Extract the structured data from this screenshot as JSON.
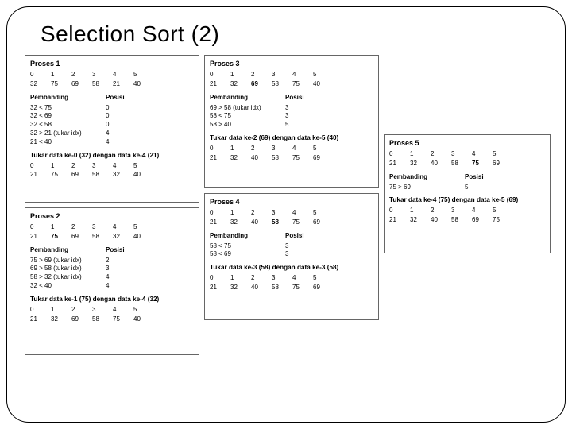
{
  "title": "Selection Sort (2)",
  "panels": {
    "p1": {
      "title": "Proses 1",
      "idx": [
        "0",
        "1",
        "2",
        "3",
        "4",
        "5"
      ],
      "vals": [
        "32",
        "75",
        "69",
        "58",
        "21",
        "40"
      ],
      "cmp_header": [
        "Pembanding",
        "Posisi"
      ],
      "cmps": [
        [
          "32 < 75",
          "0"
        ],
        [
          "32 < 69",
          "0"
        ],
        [
          "32 < 58",
          "0"
        ],
        [
          "32 > 21 (tukar idx)",
          "4"
        ],
        [
          "21 < 40",
          "4"
        ]
      ],
      "swap": "Tukar data ke-0 (32) dengan data ke-4 (21)",
      "idx2": [
        "0",
        "1",
        "2",
        "3",
        "4",
        "5"
      ],
      "vals2": [
        "21",
        "75",
        "69",
        "58",
        "32",
        "40"
      ]
    },
    "p2": {
      "title": "Proses 2",
      "idx": [
        "0",
        "1",
        "2",
        "3",
        "4",
        "5"
      ],
      "vals": [
        "21",
        "75",
        "69",
        "58",
        "32",
        "40"
      ],
      "cmp_header": [
        "Pembanding",
        "Posisi"
      ],
      "cmps": [
        [
          "75 > 69 (tukar idx)",
          "2"
        ],
        [
          "69 > 58 (tukar idx)",
          "3"
        ],
        [
          "58 > 32 (tukar idx)",
          "4"
        ],
        [
          "32 < 40",
          "4"
        ]
      ],
      "swap": "Tukar data ke-1 (75) dengan data ke-4 (32)",
      "idx2": [
        "0",
        "1",
        "2",
        "3",
        "4",
        "5"
      ],
      "vals2": [
        "21",
        "32",
        "69",
        "58",
        "75",
        "40"
      ]
    },
    "p3": {
      "title": "Proses 3",
      "idx": [
        "0",
        "1",
        "2",
        "3",
        "4",
        "5"
      ],
      "vals": [
        "21",
        "32",
        "69",
        "58",
        "75",
        "40"
      ],
      "cmp_header": [
        "Pembanding",
        "Posisi"
      ],
      "cmps": [
        [
          "69 > 58 (tukar idx)",
          "3"
        ],
        [
          "58 < 75",
          "3"
        ],
        [
          "58 > 40",
          "5"
        ]
      ],
      "swap": "Tukar data ke-2 (69) dengan data ke-5 (40)",
      "idx2": [
        "0",
        "1",
        "2",
        "3",
        "4",
        "5"
      ],
      "vals2": [
        "21",
        "32",
        "40",
        "58",
        "75",
        "69"
      ]
    },
    "p4": {
      "title": "Proses 4",
      "idx": [
        "0",
        "1",
        "2",
        "3",
        "4",
        "5"
      ],
      "vals": [
        "21",
        "32",
        "40",
        "58",
        "75",
        "69"
      ],
      "cmp_header": [
        "Pembanding",
        "Posisi"
      ],
      "cmps": [
        [
          "58 < 75",
          "3"
        ],
        [
          "58 < 69",
          "3"
        ]
      ],
      "swap": "Tukar data ke-3 (58) dengan data ke-3 (58)",
      "idx2": [
        "0",
        "1",
        "2",
        "3",
        "4",
        "5"
      ],
      "vals2": [
        "21",
        "32",
        "40",
        "58",
        "75",
        "69"
      ]
    },
    "p5": {
      "title": "Proses 5",
      "idx": [
        "0",
        "1",
        "2",
        "3",
        "4",
        "5"
      ],
      "vals": [
        "21",
        "32",
        "40",
        "58",
        "75",
        "69"
      ],
      "cmp_header": [
        "Pembanding",
        "Posisi"
      ],
      "cmps": [
        [
          "75 > 69",
          "5"
        ]
      ],
      "swap": "Tukar data ke-4 (75) dengan data ke-5 (69)",
      "idx2": [
        "0",
        "1",
        "2",
        "3",
        "4",
        "5"
      ],
      "vals2": [
        "21",
        "32",
        "40",
        "58",
        "69",
        "75"
      ]
    }
  }
}
